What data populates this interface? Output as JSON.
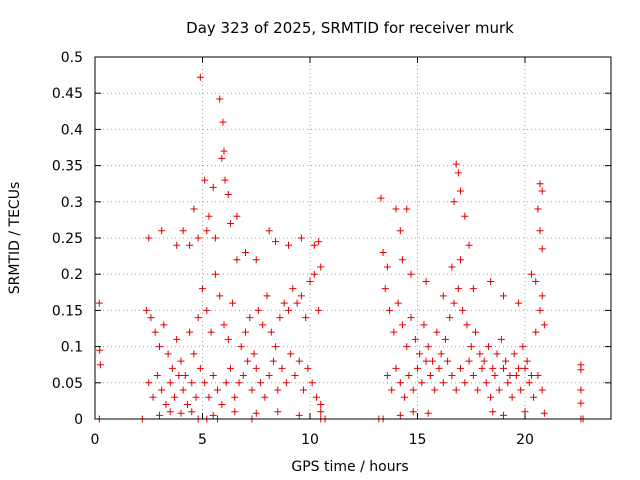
{
  "chart_data": {
    "type": "scatter",
    "title": "Day 323 of 2025, SRMTID for receiver murk",
    "xlabel": "GPS time / hours",
    "ylabel": "SRMTID / TECUs",
    "xlim": [
      0,
      24
    ],
    "ylim": [
      0,
      0.5
    ],
    "x_ticks": [
      0,
      5,
      10,
      15,
      20
    ],
    "x_tick_labels": [
      "0",
      "5",
      "10",
      "15",
      "20"
    ],
    "y_ticks": [
      0,
      0.05,
      0.1,
      0.15,
      0.2,
      0.25,
      0.3,
      0.35,
      0.4,
      0.45,
      0.5
    ],
    "y_tick_labels": [
      "0",
      "0.05",
      "0.1",
      "0.15",
      "0.2",
      "0.25",
      "0.3",
      "0.35",
      "0.4",
      "0.45",
      "0.5"
    ],
    "grid": true,
    "legend": "none",
    "marker": "plus",
    "color": "#e00000",
    "series": [
      {
        "points": [
          [
            0.2,
            0.16
          ],
          [
            0.22,
            0.095
          ],
          [
            0.25,
            0.075
          ],
          [
            4.9,
            0.472
          ],
          [
            5.8,
            0.442
          ],
          [
            5.95,
            0.41
          ],
          [
            6.0,
            0.37
          ],
          [
            5.9,
            0.36
          ],
          [
            6.05,
            0.33
          ],
          [
            5.5,
            0.32
          ],
          [
            5.1,
            0.33
          ],
          [
            4.6,
            0.29
          ],
          [
            6.2,
            0.31
          ],
          [
            5.3,
            0.28
          ],
          [
            2.5,
            0.25
          ],
          [
            3.1,
            0.26
          ],
          [
            3.8,
            0.24
          ],
          [
            4.1,
            0.26
          ],
          [
            4.4,
            0.24
          ],
          [
            4.8,
            0.25
          ],
          [
            5.2,
            0.26
          ],
          [
            5.6,
            0.25
          ],
          [
            6.3,
            0.27
          ],
          [
            6.6,
            0.28
          ],
          [
            7.0,
            0.23
          ],
          [
            7.5,
            0.22
          ],
          [
            8.1,
            0.26
          ],
          [
            8.4,
            0.245
          ],
          [
            9.0,
            0.24
          ],
          [
            9.6,
            0.25
          ],
          [
            10.2,
            0.24
          ],
          [
            10.4,
            0.245
          ],
          [
            2.4,
            0.15
          ],
          [
            2.6,
            0.14
          ],
          [
            2.8,
            0.12
          ],
          [
            3.0,
            0.1
          ],
          [
            3.2,
            0.13
          ],
          [
            3.4,
            0.09
          ],
          [
            3.6,
            0.07
          ],
          [
            3.8,
            0.11
          ],
          [
            4.0,
            0.08
          ],
          [
            4.2,
            0.06
          ],
          [
            4.4,
            0.12
          ],
          [
            4.6,
            0.09
          ],
          [
            4.8,
            0.14
          ],
          [
            5.0,
            0.18
          ],
          [
            5.2,
            0.15
          ],
          [
            5.4,
            0.12
          ],
          [
            5.6,
            0.2
          ],
          [
            5.8,
            0.17
          ],
          [
            6.0,
            0.13
          ],
          [
            6.2,
            0.11
          ],
          [
            6.4,
            0.16
          ],
          [
            6.6,
            0.22
          ],
          [
            6.8,
            0.1
          ],
          [
            7.0,
            0.12
          ],
          [
            7.2,
            0.14
          ],
          [
            7.4,
            0.09
          ],
          [
            7.6,
            0.15
          ],
          [
            7.8,
            0.13
          ],
          [
            8.0,
            0.17
          ],
          [
            8.2,
            0.12
          ],
          [
            8.4,
            0.1
          ],
          [
            8.6,
            0.14
          ],
          [
            8.8,
            0.16
          ],
          [
            9.0,
            0.15
          ],
          [
            9.2,
            0.18
          ],
          [
            9.4,
            0.16
          ],
          [
            9.6,
            0.17
          ],
          [
            9.8,
            0.14
          ],
          [
            10.0,
            0.19
          ],
          [
            10.2,
            0.2
          ],
          [
            10.4,
            0.15
          ],
          [
            10.5,
            0.21
          ],
          [
            2.5,
            0.05
          ],
          [
            2.7,
            0.03
          ],
          [
            2.9,
            0.06
          ],
          [
            3.1,
            0.04
          ],
          [
            3.3,
            0.02
          ],
          [
            3.5,
            0.05
          ],
          [
            3.7,
            0.03
          ],
          [
            3.9,
            0.06
          ],
          [
            4.1,
            0.04
          ],
          [
            4.3,
            0.02
          ],
          [
            4.5,
            0.05
          ],
          [
            4.7,
            0.03
          ],
          [
            4.9,
            0.07
          ],
          [
            5.1,
            0.05
          ],
          [
            5.3,
            0.03
          ],
          [
            5.5,
            0.06
          ],
          [
            5.7,
            0.04
          ],
          [
            5.9,
            0.02
          ],
          [
            6.1,
            0.05
          ],
          [
            6.3,
            0.07
          ],
          [
            6.5,
            0.03
          ],
          [
            6.7,
            0.05
          ],
          [
            6.9,
            0.06
          ],
          [
            7.1,
            0.08
          ],
          [
            7.3,
            0.04
          ],
          [
            7.5,
            0.07
          ],
          [
            7.7,
            0.05
          ],
          [
            7.9,
            0.03
          ],
          [
            8.1,
            0.06
          ],
          [
            8.3,
            0.08
          ],
          [
            8.5,
            0.04
          ],
          [
            8.7,
            0.07
          ],
          [
            8.9,
            0.05
          ],
          [
            9.1,
            0.09
          ],
          [
            9.3,
            0.06
          ],
          [
            9.5,
            0.08
          ],
          [
            9.7,
            0.04
          ],
          [
            9.9,
            0.07
          ],
          [
            10.1,
            0.05
          ],
          [
            10.3,
            0.03
          ],
          [
            10.5,
            0.02
          ],
          [
            3.0,
            0.005
          ],
          [
            3.5,
            0.01
          ],
          [
            4.0,
            0.008
          ],
          [
            4.5,
            0.01
          ],
          [
            5.5,
            0.005
          ],
          [
            6.5,
            0.01
          ],
          [
            7.5,
            0.008
          ],
          [
            8.5,
            0.01
          ],
          [
            9.5,
            0.005
          ],
          [
            10.5,
            0.01
          ],
          [
            13.3,
            0.305
          ],
          [
            14.0,
            0.29
          ],
          [
            14.2,
            0.26
          ],
          [
            13.4,
            0.23
          ],
          [
            13.6,
            0.21
          ],
          [
            14.5,
            0.29
          ],
          [
            16.8,
            0.352
          ],
          [
            16.9,
            0.34
          ],
          [
            17.0,
            0.315
          ],
          [
            16.7,
            0.3
          ],
          [
            17.2,
            0.28
          ],
          [
            17.4,
            0.24
          ],
          [
            20.7,
            0.325
          ],
          [
            20.8,
            0.315
          ],
          [
            20.6,
            0.29
          ],
          [
            20.7,
            0.26
          ],
          [
            20.8,
            0.235
          ],
          [
            13.5,
            0.18
          ],
          [
            13.7,
            0.15
          ],
          [
            13.9,
            0.12
          ],
          [
            14.1,
            0.16
          ],
          [
            14.3,
            0.13
          ],
          [
            14.5,
            0.1
          ],
          [
            14.7,
            0.14
          ],
          [
            14.9,
            0.11
          ],
          [
            15.1,
            0.09
          ],
          [
            15.3,
            0.13
          ],
          [
            15.5,
            0.1
          ],
          [
            15.7,
            0.08
          ],
          [
            15.9,
            0.12
          ],
          [
            16.1,
            0.09
          ],
          [
            16.3,
            0.11
          ],
          [
            16.5,
            0.14
          ],
          [
            16.7,
            0.16
          ],
          [
            16.9,
            0.18
          ],
          [
            17.1,
            0.15
          ],
          [
            17.3,
            0.13
          ],
          [
            17.5,
            0.1
          ],
          [
            17.7,
            0.12
          ],
          [
            17.9,
            0.09
          ],
          [
            18.1,
            0.08
          ],
          [
            18.3,
            0.1
          ],
          [
            18.5,
            0.07
          ],
          [
            18.7,
            0.09
          ],
          [
            18.9,
            0.11
          ],
          [
            19.1,
            0.08
          ],
          [
            19.3,
            0.06
          ],
          [
            19.5,
            0.09
          ],
          [
            19.7,
            0.07
          ],
          [
            19.9,
            0.1
          ],
          [
            20.1,
            0.08
          ],
          [
            20.3,
            0.06
          ],
          [
            20.5,
            0.12
          ],
          [
            20.7,
            0.15
          ],
          [
            20.8,
            0.17
          ],
          [
            20.9,
            0.13
          ],
          [
            13.6,
            0.06
          ],
          [
            13.8,
            0.04
          ],
          [
            14.0,
            0.07
          ],
          [
            14.2,
            0.05
          ],
          [
            14.4,
            0.03
          ],
          [
            14.6,
            0.06
          ],
          [
            14.8,
            0.04
          ],
          [
            15.0,
            0.07
          ],
          [
            15.2,
            0.05
          ],
          [
            15.4,
            0.08
          ],
          [
            15.6,
            0.06
          ],
          [
            15.8,
            0.04
          ],
          [
            16.0,
            0.07
          ],
          [
            16.2,
            0.05
          ],
          [
            16.4,
            0.08
          ],
          [
            16.6,
            0.06
          ],
          [
            16.8,
            0.04
          ],
          [
            17.0,
            0.07
          ],
          [
            17.2,
            0.05
          ],
          [
            17.4,
            0.08
          ],
          [
            17.6,
            0.06
          ],
          [
            17.8,
            0.04
          ],
          [
            18.0,
            0.07
          ],
          [
            18.2,
            0.05
          ],
          [
            18.4,
            0.03
          ],
          [
            18.6,
            0.06
          ],
          [
            18.8,
            0.04
          ],
          [
            19.0,
            0.07
          ],
          [
            19.2,
            0.05
          ],
          [
            19.4,
            0.03
          ],
          [
            19.6,
            0.06
          ],
          [
            19.8,
            0.04
          ],
          [
            20.0,
            0.07
          ],
          [
            20.2,
            0.05
          ],
          [
            20.4,
            0.03
          ],
          [
            20.6,
            0.06
          ],
          [
            20.8,
            0.04
          ],
          [
            14.2,
            0.005
          ],
          [
            14.8,
            0.01
          ],
          [
            15.5,
            0.008
          ],
          [
            18.5,
            0.01
          ],
          [
            19.0,
            0.005
          ],
          [
            20.0,
            0.01
          ],
          [
            20.9,
            0.008
          ],
          [
            14.3,
            0.22
          ],
          [
            14.7,
            0.2
          ],
          [
            15.4,
            0.19
          ],
          [
            16.2,
            0.17
          ],
          [
            16.6,
            0.21
          ],
          [
            17.0,
            0.22
          ],
          [
            17.6,
            0.18
          ],
          [
            18.4,
            0.19
          ],
          [
            19.0,
            0.17
          ],
          [
            19.7,
            0.16
          ],
          [
            20.3,
            0.2
          ],
          [
            20.5,
            0.19
          ],
          [
            22.6,
            0.075
          ],
          [
            22.6,
            0.068
          ],
          [
            22.6,
            0.04
          ],
          [
            22.6,
            0.022
          ]
        ]
      },
      {
        "points": [
          [
            0.2,
            0
          ],
          [
            2.2,
            0
          ],
          [
            4.8,
            0
          ],
          [
            5.2,
            0
          ],
          [
            5.7,
            0
          ],
          [
            7.3,
            0
          ],
          [
            10.5,
            0
          ],
          [
            10.7,
            0
          ],
          [
            13.2,
            0
          ],
          [
            13.4,
            0
          ],
          [
            22.6,
            0
          ],
          [
            22.7,
            0
          ]
        ]
      }
    ]
  }
}
